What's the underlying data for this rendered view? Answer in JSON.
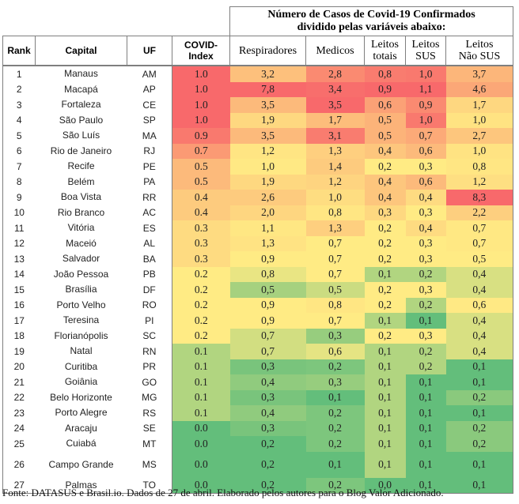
{
  "header": {
    "group_title_line1": "Número de Casos de Covid-19 Confirmados",
    "group_title_line2": "dividido pelas variáveis abaixo:",
    "columns": {
      "rank": "Rank",
      "capital": "Capital",
      "uf": "UF",
      "covid_index_line1": "COVID-",
      "covid_index_line2": "Index",
      "respiradores": "Respiradores",
      "medicos": "Medicos",
      "leitos_totais_line1": "Leitos",
      "leitos_totais_line2": "totais",
      "leitos_sus_line1": "Leitos",
      "leitos_sus_line2": "SUS",
      "leitos_nao_sus_line1": "Leitos",
      "leitos_nao_sus_line2": "Não SUS"
    }
  },
  "rows": [
    {
      "rank": "1",
      "capital": "Manaus",
      "uf": "AM",
      "covid_index": "1.0",
      "respiradores": "3,2",
      "medicos": "2,8",
      "leitos_totais": "0,8",
      "leitos_sus": "1,0",
      "leitos_nao_sus": "3,7"
    },
    {
      "rank": "2",
      "capital": "Macapá",
      "uf": "AP",
      "covid_index": "1.0",
      "respiradores": "7,8",
      "medicos": "3,4",
      "leitos_totais": "0,9",
      "leitos_sus": "1,1",
      "leitos_nao_sus": "4,6"
    },
    {
      "rank": "3",
      "capital": "Fortaleza",
      "uf": "CE",
      "covid_index": "1.0",
      "respiradores": "3,5",
      "medicos": "3,5",
      "leitos_totais": "0,6",
      "leitos_sus": "0,9",
      "leitos_nao_sus": "1,7"
    },
    {
      "rank": "4",
      "capital": "São Paulo",
      "uf": "SP",
      "covid_index": "1.0",
      "respiradores": "1,9",
      "medicos": "1,7",
      "leitos_totais": "0,5",
      "leitos_sus": "1,0",
      "leitos_nao_sus": "1,0"
    },
    {
      "rank": "5",
      "capital": "São Luís",
      "uf": "MA",
      "covid_index": "0.9",
      "respiradores": "3,5",
      "medicos": "3,1",
      "leitos_totais": "0,5",
      "leitos_sus": "0,7",
      "leitos_nao_sus": "2,7"
    },
    {
      "rank": "6",
      "capital": "Rio de Janeiro",
      "uf": "RJ",
      "covid_index": "0.7",
      "respiradores": "1,2",
      "medicos": "1,3",
      "leitos_totais": "0,4",
      "leitos_sus": "0,6",
      "leitos_nao_sus": "1,0"
    },
    {
      "rank": "7",
      "capital": "Recife",
      "uf": "PE",
      "covid_index": "0.5",
      "respiradores": "1,0",
      "medicos": "1,4",
      "leitos_totais": "0,2",
      "leitos_sus": "0,3",
      "leitos_nao_sus": "0,8"
    },
    {
      "rank": "8",
      "capital": "Belém",
      "uf": "PA",
      "covid_index": "0.5",
      "respiradores": "1,9",
      "medicos": "1,2",
      "leitos_totais": "0,4",
      "leitos_sus": "0,6",
      "leitos_nao_sus": "1,2"
    },
    {
      "rank": "9",
      "capital": "Boa Vista",
      "uf": "RR",
      "covid_index": "0.4",
      "respiradores": "2,6",
      "medicos": "1,0",
      "leitos_totais": "0,4",
      "leitos_sus": "0,4",
      "leitos_nao_sus": "8,3"
    },
    {
      "rank": "10",
      "capital": "Rio Branco",
      "uf": "AC",
      "covid_index": "0.4",
      "respiradores": "2,0",
      "medicos": "0,8",
      "leitos_totais": "0,3",
      "leitos_sus": "0,3",
      "leitos_nao_sus": "2,2"
    },
    {
      "rank": "11",
      "capital": "Vitória",
      "uf": "ES",
      "covid_index": "0.3",
      "respiradores": "1,1",
      "medicos": "1,3",
      "leitos_totais": "0,2",
      "leitos_sus": "0,4",
      "leitos_nao_sus": "0,7"
    },
    {
      "rank": "12",
      "capital": "Maceió",
      "uf": "AL",
      "covid_index": "0.3",
      "respiradores": "1,3",
      "medicos": "0,7",
      "leitos_totais": "0,2",
      "leitos_sus": "0,3",
      "leitos_nao_sus": "0,7"
    },
    {
      "rank": "13",
      "capital": "Salvador",
      "uf": "BA",
      "covid_index": "0.3",
      "respiradores": "0,9",
      "medicos": "0,7",
      "leitos_totais": "0,2",
      "leitos_sus": "0,3",
      "leitos_nao_sus": "0,5"
    },
    {
      "rank": "14",
      "capital": "João Pessoa",
      "uf": "PB",
      "covid_index": "0.2",
      "respiradores": "0,8",
      "medicos": "0,7",
      "leitos_totais": "0,1",
      "leitos_sus": "0,2",
      "leitos_nao_sus": "0,4"
    },
    {
      "rank": "15",
      "capital": "Brasília",
      "uf": "DF",
      "covid_index": "0.2",
      "respiradores": "0,5",
      "medicos": "0,5",
      "leitos_totais": "0,2",
      "leitos_sus": "0,3",
      "leitos_nao_sus": "0,4"
    },
    {
      "rank": "16",
      "capital": "Porto Velho",
      "uf": "RO",
      "covid_index": "0.2",
      "respiradores": "0,9",
      "medicos": "0,8",
      "leitos_totais": "0,2",
      "leitos_sus": "0,2",
      "leitos_nao_sus": "0,6"
    },
    {
      "rank": "17",
      "capital": "Teresina",
      "uf": "PI",
      "covid_index": "0.2",
      "respiradores": "0,9",
      "medicos": "0,7",
      "leitos_totais": "0,1",
      "leitos_sus": "0,1",
      "leitos_nao_sus": "0,4"
    },
    {
      "rank": "18",
      "capital": "Florianópolis",
      "uf": "SC",
      "covid_index": "0.2",
      "respiradores": "0,7",
      "medicos": "0,3",
      "leitos_totais": "0,2",
      "leitos_sus": "0,3",
      "leitos_nao_sus": "0,4"
    },
    {
      "rank": "19",
      "capital": "Natal",
      "uf": "RN",
      "covid_index": "0.1",
      "respiradores": "0,7",
      "medicos": "0,6",
      "leitos_totais": "0,1",
      "leitos_sus": "0,2",
      "leitos_nao_sus": "0,4"
    },
    {
      "rank": "20",
      "capital": "Curitiba",
      "uf": "PR",
      "covid_index": "0.1",
      "respiradores": "0,3",
      "medicos": "0,2",
      "leitos_totais": "0,1",
      "leitos_sus": "0,2",
      "leitos_nao_sus": "0,1"
    },
    {
      "rank": "21",
      "capital": "Goiânia",
      "uf": "GO",
      "covid_index": "0.1",
      "respiradores": "0,4",
      "medicos": "0,3",
      "leitos_totais": "0,1",
      "leitos_sus": "0,1",
      "leitos_nao_sus": "0,1"
    },
    {
      "rank": "22",
      "capital": "Belo Horizonte",
      "uf": "MG",
      "covid_index": "0.1",
      "respiradores": "0,3",
      "medicos": "0,1",
      "leitos_totais": "0,1",
      "leitos_sus": "0,1",
      "leitos_nao_sus": "0,2"
    },
    {
      "rank": "23",
      "capital": "Porto Alegre",
      "uf": "RS",
      "covid_index": "0.1",
      "respiradores": "0,4",
      "medicos": "0,2",
      "leitos_totais": "0,1",
      "leitos_sus": "0,1",
      "leitos_nao_sus": "0,1"
    },
    {
      "rank": "24",
      "capital": "Aracaju",
      "uf": "SE",
      "covid_index": "0.0",
      "respiradores": "0,3",
      "medicos": "0,2",
      "leitos_totais": "0,1",
      "leitos_sus": "0,1",
      "leitos_nao_sus": "0,2"
    },
    {
      "rank": "25",
      "capital": "Cuiabá",
      "uf": "MT",
      "covid_index": "0.0",
      "respiradores": "0,2",
      "medicos": "0,2",
      "leitos_totais": "0,1",
      "leitos_sus": "0,1",
      "leitos_nao_sus": "0,2"
    },
    {
      "rank": "26",
      "capital": "Campo Grande",
      "uf": "MS",
      "covid_index": "0.0",
      "respiradores": "0,2",
      "medicos": "0,1",
      "leitos_totais": "0,1",
      "leitos_sus": "0,1",
      "leitos_nao_sus": "0,1"
    },
    {
      "rank": "27",
      "capital": "Palmas",
      "uf": "TO",
      "covid_index": "0.0",
      "respiradores": "0,2",
      "medicos": "0,2",
      "leitos_totais": "0,0",
      "leitos_sus": "0,1",
      "leitos_nao_sus": "0,1"
    }
  ],
  "heat_colors": {
    "low": "#63be7b",
    "mid": "#ffeb84",
    "high": "#f8696b"
  },
  "footer": "Fonte: DATASUS e Brasil.io. Dados de 27 de abril. Elaborado pelos autores para o Blog Valor Adicionado."
}
